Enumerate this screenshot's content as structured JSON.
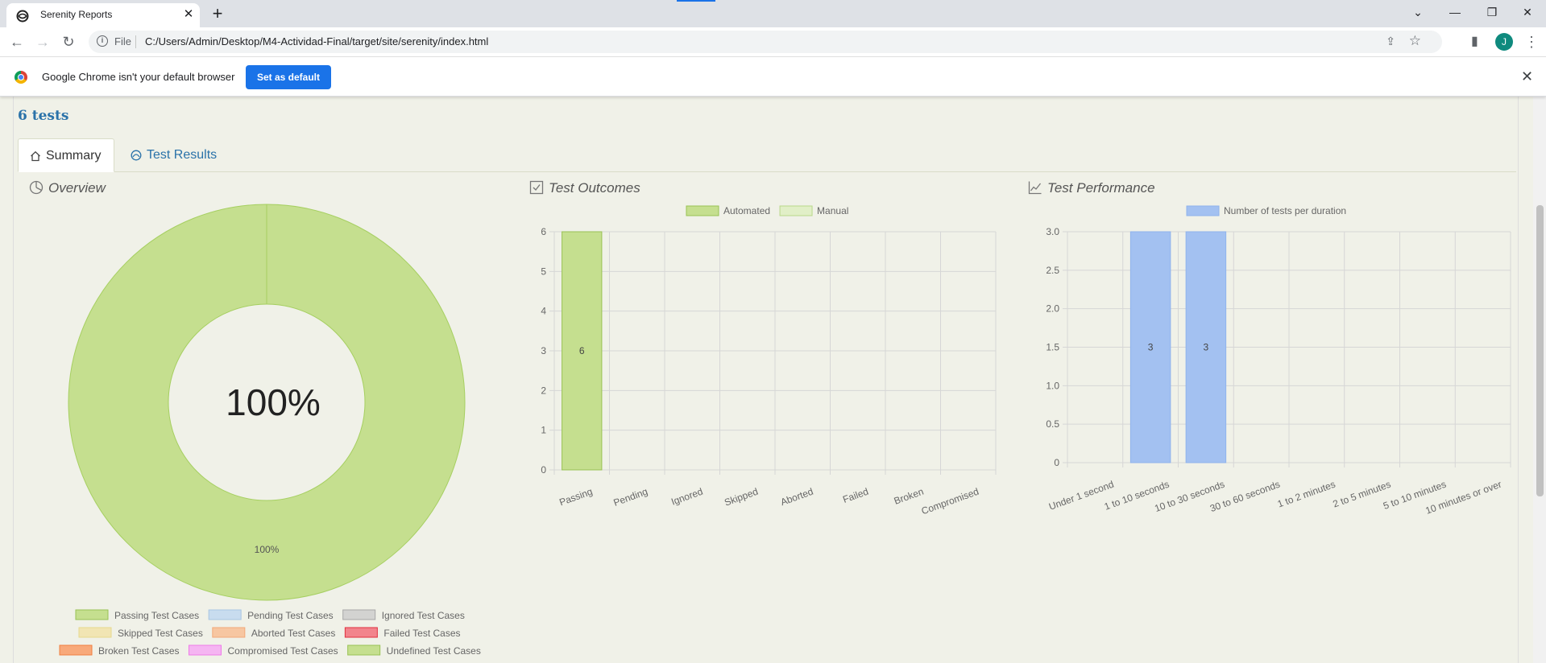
{
  "browser": {
    "tab_title": "Serenity Reports",
    "url_scheme": "File",
    "url": "C:/Users/Admin/Desktop/M4-Actividad-Final/target/site/serenity/index.html",
    "avatar_initial": "J"
  },
  "infobar": {
    "message": "Google Chrome isn't your default browser",
    "button": "Set as default"
  },
  "report": {
    "tests_count": "6 tests",
    "tabs": [
      {
        "label": "Summary",
        "active": true
      },
      {
        "label": "Test Results",
        "active": false
      }
    ],
    "sections": {
      "overview": "Overview",
      "outcomes": "Test Outcomes",
      "performance": "Test Performance"
    }
  },
  "chart_data": [
    {
      "type": "pie",
      "title": "Overview",
      "center_label": "100%",
      "slices": [
        {
          "name": "Passing Test Cases",
          "value": 100,
          "color": "#c5df8f",
          "label": "100%"
        }
      ],
      "legend": [
        {
          "name": "Passing Test Cases",
          "color": "#c5df8f",
          "border": "#99c254"
        },
        {
          "name": "Pending Test Cases",
          "color": "#c8dcef",
          "border": "#a9c6e3"
        },
        {
          "name": "Ignored Test Cases",
          "color": "#d3d3d1",
          "border": "#a8a8a8"
        },
        {
          "name": "Skipped Test Cases",
          "color": "#f1e5b3",
          "border": "#e6d98c"
        },
        {
          "name": "Aborted Test Cases",
          "color": "#f7c6a1",
          "border": "#f2a877"
        },
        {
          "name": "Failed Test Cases",
          "color": "#f2848c",
          "border": "#e0303e"
        },
        {
          "name": "Broken Test Cases",
          "color": "#f8a97a",
          "border": "#f08040"
        },
        {
          "name": "Compromised Test Cases",
          "color": "#f5b5f2",
          "border": "#ee7ae8"
        },
        {
          "name": "Undefined Test Cases",
          "color": "#c5df8f",
          "border": "#99c254"
        }
      ],
      "legend_placement": "bottom"
    },
    {
      "type": "bar",
      "title": "Test Outcomes",
      "categories": [
        "Passing",
        "Pending",
        "Ignored",
        "Skipped",
        "Aborted",
        "Failed",
        "Broken",
        "Compromised"
      ],
      "series": [
        {
          "name": "Automated",
          "values": [
            6,
            0,
            0,
            0,
            0,
            0,
            0,
            0
          ],
          "color": "#c5df8f",
          "border": "#99c254"
        },
        {
          "name": "Manual",
          "values": [
            0,
            0,
            0,
            0,
            0,
            0,
            0,
            0
          ],
          "color": "#e1efc7",
          "border": "#b9d88a"
        }
      ],
      "stacked": true,
      "data_labels": [
        "6"
      ],
      "ylim": [
        0,
        6
      ],
      "yticks": [
        "0",
        "1",
        "2",
        "3",
        "4",
        "5",
        "6"
      ],
      "grid": true,
      "legend_placement": "top"
    },
    {
      "type": "bar",
      "title": "Test Performance",
      "categories": [
        "Under 1 second",
        "1 to 10 seconds",
        "10 to 30 seconds",
        "30 to 60 seconds",
        "1 to 2 minutes",
        "2 to 5 minutes",
        "5 to 10 minutes",
        "10 minutes or over"
      ],
      "series": [
        {
          "name": "Number of tests per duration",
          "values": [
            0,
            3,
            3,
            0,
            0,
            0,
            0,
            0
          ],
          "color": "#a3c1f1",
          "border": "#8fb3ec"
        }
      ],
      "ylim": [
        0,
        3
      ],
      "yticks": [
        "0",
        "0.5",
        "1.0",
        "1.5",
        "2.0",
        "2.5",
        "3.0"
      ],
      "grid": true,
      "legend_placement": "top"
    }
  ]
}
